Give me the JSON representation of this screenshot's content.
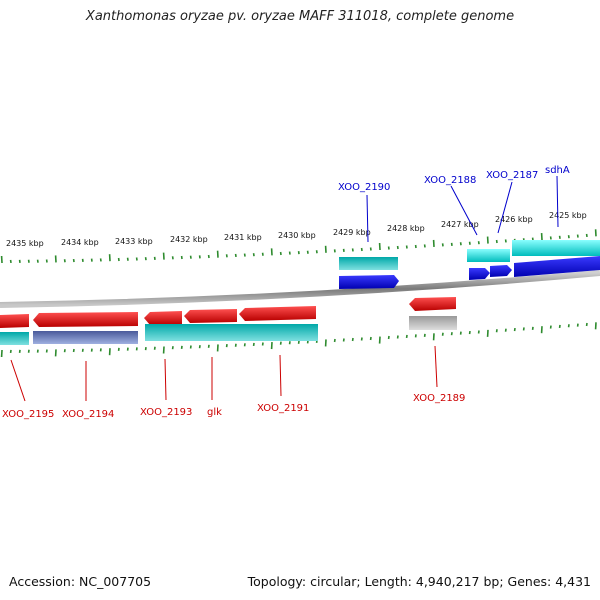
{
  "title": "Xanthomonas oryzae pv. oryzae MAFF 311018, complete genome",
  "footer": {
    "accession": "Accession: NC_007705",
    "topology": "Topology: circular; Length: 4,940,217 bp; Genes: 4,431"
  },
  "colors": {
    "forward_gene": "#0000e0",
    "forward_cds": "#00cccc",
    "reverse_gene": "#dd0000",
    "reverse_cds": "#009999",
    "pseudo": "#bbbbbb",
    "ticks": "#2e8b2e",
    "backbone": "#888888",
    "forward_label": "#0000cc",
    "reverse_label": "#cc0000"
  },
  "scale_labels": [
    "2435 kbp",
    "2434 kbp",
    "2433 kbp",
    "2432 kbp",
    "2431 kbp",
    "2430 kbp",
    "2429 kbp",
    "2428 kbp",
    "2427 kbp",
    "2426 kbp",
    "2425 kbp"
  ],
  "forward_labels": [
    "XOO_2190",
    "XOO_2188",
    "XOO_2187",
    "sdhA"
  ],
  "reverse_labels": [
    "XOO_2195",
    "XOO_2194",
    "XOO_2193",
    "glk",
    "XOO_2191",
    "XOO_2189"
  ]
}
